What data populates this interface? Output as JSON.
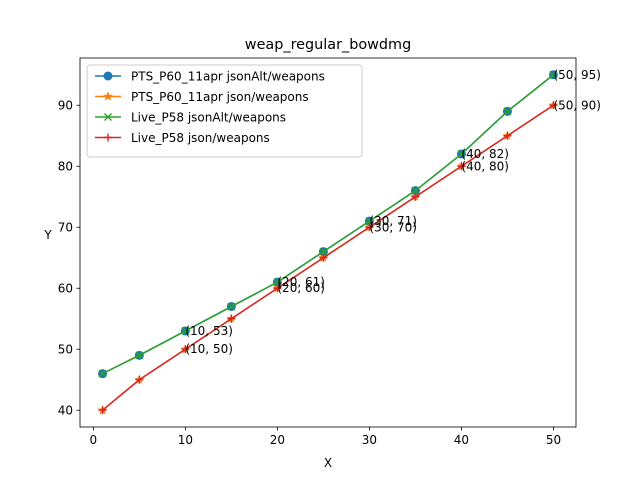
{
  "chart_data": {
    "type": "line",
    "title": "weap_regular_bowdmg",
    "xlabel": "X",
    "ylabel": "Y",
    "xlim": [
      -1.45,
      52.45
    ],
    "ylim": [
      37.25,
      97.75
    ],
    "xticks": [
      0,
      10,
      20,
      30,
      40,
      50
    ],
    "yticks": [
      40,
      50,
      60,
      70,
      80,
      90
    ],
    "legend_position": "upper-left",
    "grid": false,
    "series": [
      {
        "name": "PTS_P60_11apr jsonAlt/weapons",
        "color": "#1f77b4",
        "marker": "circle",
        "x": [
          1,
          5,
          10,
          15,
          20,
          25,
          30,
          35,
          40,
          45,
          50
        ],
        "y": [
          46,
          49,
          53,
          57,
          61,
          66,
          71,
          76,
          82,
          89,
          95
        ]
      },
      {
        "name": "PTS_P60_11apr json/weapons",
        "color": "#ff7f0e",
        "marker": "star",
        "x": [
          1,
          5,
          10,
          15,
          20,
          25,
          30,
          35,
          40,
          45,
          50
        ],
        "y": [
          40,
          45,
          50,
          55,
          60,
          65,
          70,
          75,
          80,
          85,
          90
        ]
      },
      {
        "name": "Live_P58 jsonAlt/weapons",
        "color": "#2ca02c",
        "marker": "x",
        "x": [
          1,
          5,
          10,
          15,
          20,
          25,
          30,
          35,
          40,
          45,
          50
        ],
        "y": [
          46,
          49,
          53,
          57,
          61,
          66,
          71,
          76,
          82,
          89,
          95
        ]
      },
      {
        "name": "Live_P58 json/weapons",
        "color": "#d62728",
        "marker": "plus",
        "x": [
          1,
          5,
          10,
          15,
          20,
          25,
          30,
          35,
          40,
          45,
          50
        ],
        "y": [
          40,
          45,
          50,
          55,
          60,
          65,
          70,
          75,
          80,
          85,
          90
        ]
      }
    ],
    "annotations": [
      {
        "x": 10,
        "y": 53,
        "text": "(10, 53)"
      },
      {
        "x": 10,
        "y": 50,
        "text": "(10, 50)"
      },
      {
        "x": 20,
        "y": 61,
        "text": "(20, 61)"
      },
      {
        "x": 20,
        "y": 60,
        "text": "(20, 60)"
      },
      {
        "x": 30,
        "y": 71,
        "text": "(30, 71)"
      },
      {
        "x": 30,
        "y": 70,
        "text": "(30, 70)"
      },
      {
        "x": 40,
        "y": 82,
        "text": "(40, 82)"
      },
      {
        "x": 40,
        "y": 80,
        "text": "(40, 80)"
      },
      {
        "x": 50,
        "y": 95,
        "text": "(50, 95)"
      },
      {
        "x": 50,
        "y": 90,
        "text": "(50, 90)"
      }
    ]
  }
}
